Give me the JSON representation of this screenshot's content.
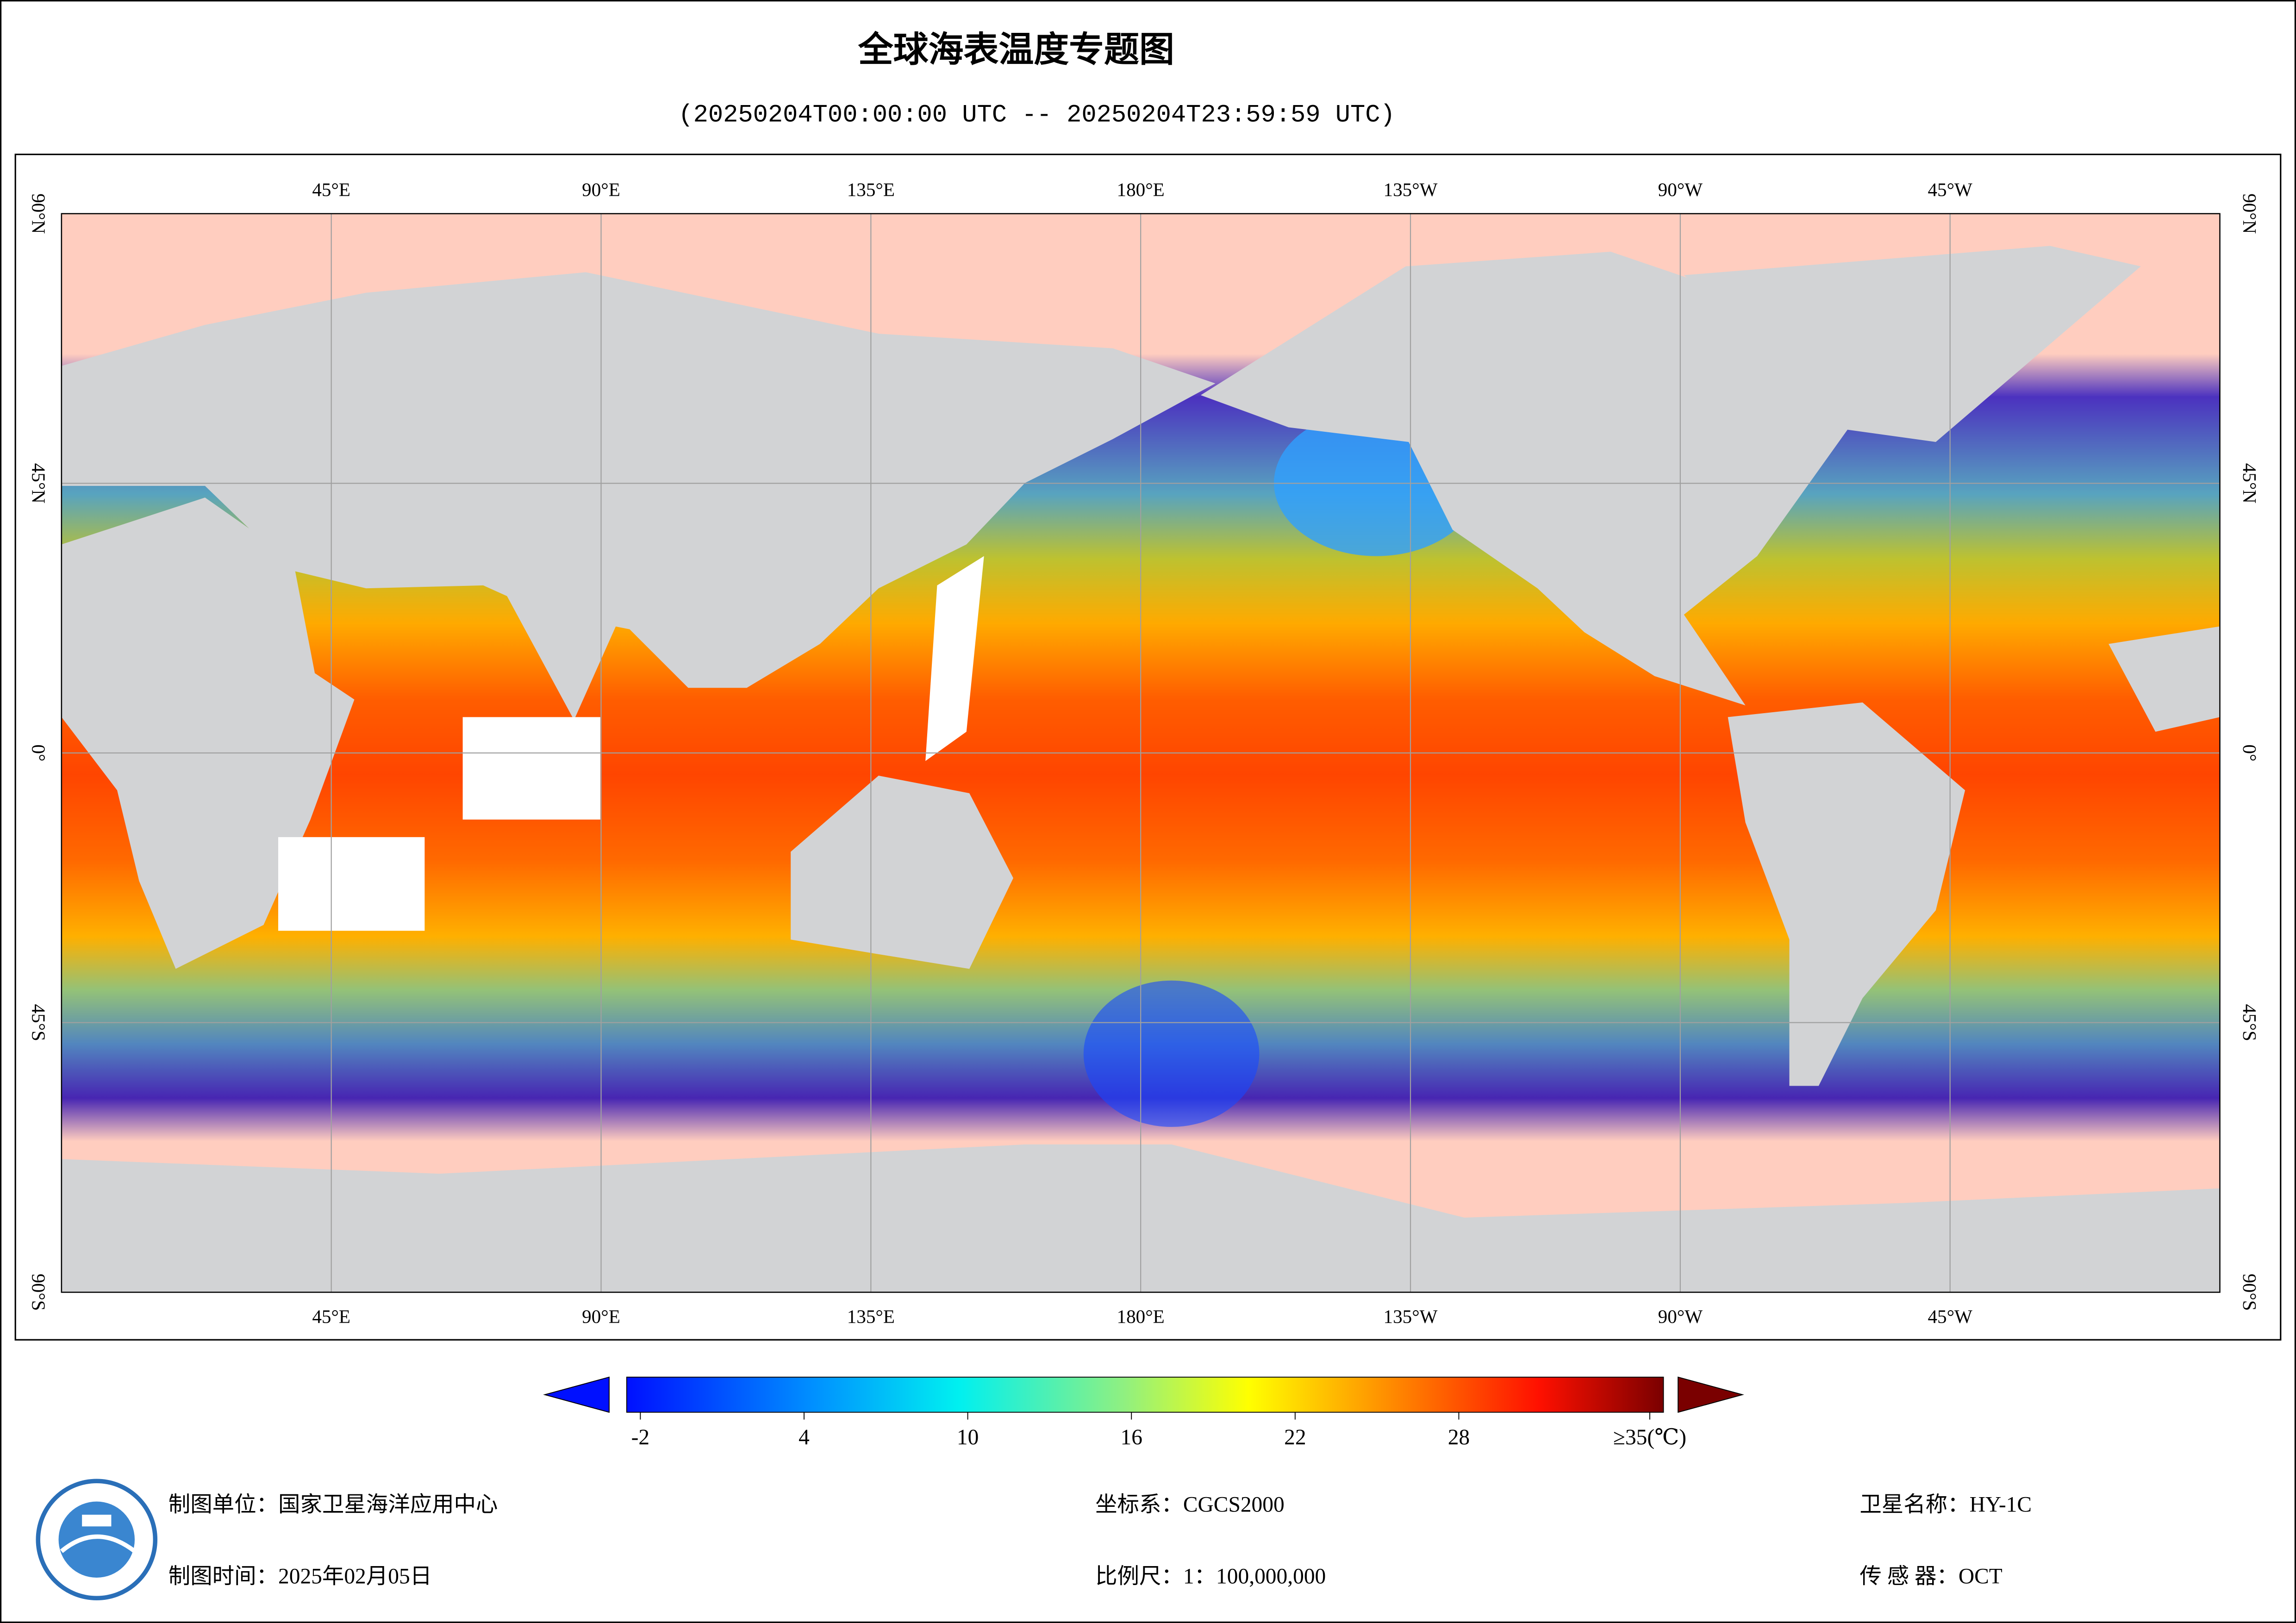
{
  "title": "全球海表温度专题图",
  "subtitle": "(20250204T00:00:00 UTC -- 20250204T23:59:59 UTC)",
  "map": {
    "lonlim": [
      0,
      360
    ],
    "latlim": [
      -90,
      90
    ],
    "lon_ticks": [
      {
        "value": 45,
        "label": "45°E"
      },
      {
        "value": 90,
        "label": "90°E"
      },
      {
        "value": 135,
        "label": "135°E"
      },
      {
        "value": 180,
        "label": "180°E"
      },
      {
        "value": 225,
        "label": "135°W"
      },
      {
        "value": 270,
        "label": "90°W"
      },
      {
        "value": 315,
        "label": "45°W"
      }
    ],
    "lat_ticks": [
      {
        "value": 90,
        "label": "90°N"
      },
      {
        "value": 45,
        "label": "45°N"
      },
      {
        "value": 0,
        "label": "0°"
      },
      {
        "value": -45,
        "label": "45°S"
      },
      {
        "value": -90,
        "label": "90°S"
      }
    ]
  },
  "colorbar": {
    "range": [
      -2.5,
      35.5
    ],
    "ticks": [
      -2,
      4,
      10,
      16,
      22,
      28,
      {
        "value": 35,
        "label": "≥35(℃)"
      }
    ]
  },
  "footer": {
    "unit": "制图单位：国家卫星海洋应用中心",
    "time": "制图时间：2025年02月05日",
    "crs": "坐标系：CGCS2000",
    "scale": "比例尺：1：100,000,000",
    "satellite": "卫星名称：HY-1C",
    "sensor": "传 感 器：OCT"
  }
}
